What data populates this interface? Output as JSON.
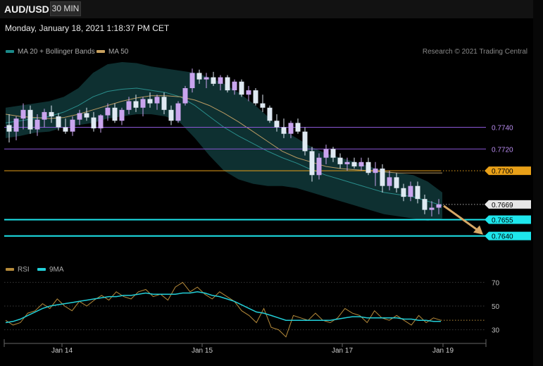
{
  "header": {
    "symbol": "AUD/USD",
    "timeframe": "30 MIN",
    "datetime": "Monday, January 18, 2021 1:18:37 PM CET"
  },
  "legend_main": [
    {
      "label": "MA 20 + Bollinger Bands",
      "color": "#1a8a8a"
    },
    {
      "label": "MA 50",
      "color": "#c9a15e"
    }
  ],
  "credit": "Research © 2021 Trading Central",
  "legend_rsi": [
    {
      "label": "RSI",
      "color": "#b58a3a"
    },
    {
      "label": "9MA",
      "color": "#22cfd8"
    }
  ],
  "colors": {
    "bull": "#c9a4ee",
    "bear": "#dfe9f2",
    "band_fill": "#0f3536",
    "ma20": "#2a8e8c",
    "ma50": "#b89a62",
    "cyan": "#1ee6ec",
    "orange": "#e8a018",
    "purple": "#8a56d6",
    "arrow": "#d7a866",
    "rsi": "#b58a3a",
    "rsi_ma": "#22cfd8"
  },
  "chart_data": [
    {
      "type": "candlestick",
      "title": "AUD/USD",
      "timeframe": "30 MIN",
      "x_labels": [
        "Jan 14",
        "Jan 15",
        "Jan 17",
        "Jan 19"
      ],
      "ylim": [
        0.763,
        0.78
      ],
      "candles": [
        {
          "o": 0.7742,
          "h": 0.7752,
          "l": 0.7726,
          "c": 0.7736
        },
        {
          "o": 0.7736,
          "h": 0.775,
          "l": 0.7728,
          "c": 0.7748
        },
        {
          "o": 0.7748,
          "h": 0.7762,
          "l": 0.7738,
          "c": 0.7756
        },
        {
          "o": 0.7756,
          "h": 0.776,
          "l": 0.7734,
          "c": 0.7738
        },
        {
          "o": 0.7738,
          "h": 0.7752,
          "l": 0.7732,
          "c": 0.7747
        },
        {
          "o": 0.7747,
          "h": 0.7757,
          "l": 0.774,
          "c": 0.7754
        },
        {
          "o": 0.7754,
          "h": 0.776,
          "l": 0.7744,
          "c": 0.775
        },
        {
          "o": 0.775,
          "h": 0.7753,
          "l": 0.7737,
          "c": 0.774
        },
        {
          "o": 0.774,
          "h": 0.7748,
          "l": 0.7734,
          "c": 0.7736
        },
        {
          "o": 0.7736,
          "h": 0.775,
          "l": 0.7732,
          "c": 0.7747
        },
        {
          "o": 0.7747,
          "h": 0.7756,
          "l": 0.7742,
          "c": 0.7753
        },
        {
          "o": 0.7753,
          "h": 0.7758,
          "l": 0.7746,
          "c": 0.7749
        },
        {
          "o": 0.7749,
          "h": 0.7754,
          "l": 0.7736,
          "c": 0.7739
        },
        {
          "o": 0.7739,
          "h": 0.7752,
          "l": 0.7735,
          "c": 0.7751
        },
        {
          "o": 0.7751,
          "h": 0.7762,
          "l": 0.7746,
          "c": 0.7758
        },
        {
          "o": 0.7758,
          "h": 0.7762,
          "l": 0.7744,
          "c": 0.7746
        },
        {
          "o": 0.7746,
          "h": 0.7758,
          "l": 0.7742,
          "c": 0.7756
        },
        {
          "o": 0.7756,
          "h": 0.7768,
          "l": 0.7752,
          "c": 0.7764
        },
        {
          "o": 0.7764,
          "h": 0.777,
          "l": 0.7754,
          "c": 0.7758
        },
        {
          "o": 0.7758,
          "h": 0.7768,
          "l": 0.775,
          "c": 0.7766
        },
        {
          "o": 0.7766,
          "h": 0.7772,
          "l": 0.7758,
          "c": 0.7762
        },
        {
          "o": 0.7762,
          "h": 0.777,
          "l": 0.7756,
          "c": 0.7768
        },
        {
          "o": 0.7768,
          "h": 0.7772,
          "l": 0.7752,
          "c": 0.7756
        },
        {
          "o": 0.7756,
          "h": 0.776,
          "l": 0.7742,
          "c": 0.7746
        },
        {
          "o": 0.7746,
          "h": 0.7764,
          "l": 0.7744,
          "c": 0.7762
        },
        {
          "o": 0.7762,
          "h": 0.7778,
          "l": 0.776,
          "c": 0.7776
        },
        {
          "o": 0.7776,
          "h": 0.7794,
          "l": 0.7772,
          "c": 0.779
        },
        {
          "o": 0.779,
          "h": 0.7793,
          "l": 0.778,
          "c": 0.7784
        },
        {
          "o": 0.7784,
          "h": 0.779,
          "l": 0.7776,
          "c": 0.7786
        },
        {
          "o": 0.7786,
          "h": 0.7791,
          "l": 0.7778,
          "c": 0.778
        },
        {
          "o": 0.778,
          "h": 0.7788,
          "l": 0.7774,
          "c": 0.7786
        },
        {
          "o": 0.7786,
          "h": 0.7788,
          "l": 0.7772,
          "c": 0.7774
        },
        {
          "o": 0.7774,
          "h": 0.7784,
          "l": 0.777,
          "c": 0.7782
        },
        {
          "o": 0.7782,
          "h": 0.7784,
          "l": 0.7768,
          "c": 0.777
        },
        {
          "o": 0.777,
          "h": 0.7778,
          "l": 0.7764,
          "c": 0.7774
        },
        {
          "o": 0.7774,
          "h": 0.7776,
          "l": 0.776,
          "c": 0.7762
        },
        {
          "o": 0.7762,
          "h": 0.777,
          "l": 0.7754,
          "c": 0.7758
        },
        {
          "o": 0.7758,
          "h": 0.776,
          "l": 0.7744,
          "c": 0.7746
        },
        {
          "o": 0.7746,
          "h": 0.7752,
          "l": 0.7736,
          "c": 0.774
        },
        {
          "o": 0.774,
          "h": 0.7748,
          "l": 0.773,
          "c": 0.7734
        },
        {
          "o": 0.7734,
          "h": 0.7746,
          "l": 0.773,
          "c": 0.7744
        },
        {
          "o": 0.7744,
          "h": 0.7748,
          "l": 0.7734,
          "c": 0.7736
        },
        {
          "o": 0.7736,
          "h": 0.774,
          "l": 0.7714,
          "c": 0.7718
        },
        {
          "o": 0.7718,
          "h": 0.7722,
          "l": 0.769,
          "c": 0.7696
        },
        {
          "o": 0.7696,
          "h": 0.7716,
          "l": 0.7692,
          "c": 0.7712
        },
        {
          "o": 0.7712,
          "h": 0.7724,
          "l": 0.7706,
          "c": 0.772
        },
        {
          "o": 0.772,
          "h": 0.7722,
          "l": 0.7708,
          "c": 0.7712
        },
        {
          "o": 0.7712,
          "h": 0.7716,
          "l": 0.7702,
          "c": 0.7706
        },
        {
          "o": 0.7706,
          "h": 0.7712,
          "l": 0.77,
          "c": 0.7708
        },
        {
          "o": 0.7708,
          "h": 0.7712,
          "l": 0.7702,
          "c": 0.7704
        },
        {
          "o": 0.7704,
          "h": 0.7712,
          "l": 0.77,
          "c": 0.7708
        },
        {
          "o": 0.7708,
          "h": 0.7712,
          "l": 0.7696,
          "c": 0.7698
        },
        {
          "o": 0.7698,
          "h": 0.7708,
          "l": 0.7686,
          "c": 0.7702
        },
        {
          "o": 0.7702,
          "h": 0.7706,
          "l": 0.768,
          "c": 0.7686
        },
        {
          "o": 0.7686,
          "h": 0.77,
          "l": 0.7682,
          "c": 0.7694
        },
        {
          "o": 0.7694,
          "h": 0.7698,
          "l": 0.768,
          "c": 0.7684
        },
        {
          "o": 0.7684,
          "h": 0.7688,
          "l": 0.7672,
          "c": 0.7676
        },
        {
          "o": 0.7676,
          "h": 0.769,
          "l": 0.7672,
          "c": 0.7686
        },
        {
          "o": 0.7686,
          "h": 0.769,
          "l": 0.767,
          "c": 0.7674
        },
        {
          "o": 0.7674,
          "h": 0.7678,
          "l": 0.766,
          "c": 0.7664
        },
        {
          "o": 0.7664,
          "h": 0.7672,
          "l": 0.7658,
          "c": 0.7666
        },
        {
          "o": 0.7666,
          "h": 0.7674,
          "l": 0.766,
          "c": 0.7669
        }
      ],
      "bollinger_upper": [
        0.7758,
        0.776,
        0.7762,
        0.7764,
        0.7768,
        0.7776,
        0.779,
        0.7798,
        0.78,
        0.7799,
        0.7796,
        0.7794,
        0.7792,
        0.779,
        0.7786,
        0.778,
        0.7772,
        0.7762,
        0.775,
        0.7738,
        0.773,
        0.7722,
        0.7716,
        0.7712,
        0.7708,
        0.7704,
        0.77,
        0.7698,
        0.7696,
        0.769,
        0.768
      ],
      "bollinger_lower": [
        0.773,
        0.7732,
        0.7735,
        0.7736,
        0.774,
        0.7742,
        0.7744,
        0.7748,
        0.775,
        0.7752,
        0.7752,
        0.775,
        0.7744,
        0.773,
        0.7714,
        0.77,
        0.7692,
        0.7688,
        0.7686,
        0.7686,
        0.7684,
        0.768,
        0.7676,
        0.7672,
        0.7668,
        0.7664,
        0.766,
        0.7658,
        0.7656,
        0.7654,
        0.7656
      ],
      "ma20": [
        0.7744,
        0.7746,
        0.7748,
        0.775,
        0.7754,
        0.776,
        0.7768,
        0.7773,
        0.7775,
        0.7776,
        0.7774,
        0.7772,
        0.7768,
        0.776,
        0.775,
        0.774,
        0.7732,
        0.7725,
        0.7718,
        0.7712,
        0.7707,
        0.7701,
        0.7696,
        0.7692,
        0.7688,
        0.7684,
        0.768,
        0.7678,
        0.7676,
        0.7672,
        0.7668
      ],
      "ma50": [
        0.7752,
        0.775,
        0.7749,
        0.7748,
        0.7749,
        0.7752,
        0.7756,
        0.776,
        0.7764,
        0.7767,
        0.7769,
        0.7769,
        0.7768,
        0.7765,
        0.776,
        0.7753,
        0.7745,
        0.7736,
        0.7727,
        0.7718,
        0.7712,
        0.7708,
        0.7704,
        0.7702,
        0.7701,
        0.77,
        0.7699,
        0.7698,
        0.7698,
        0.7698,
        0.7698
      ],
      "levels": [
        {
          "value": 0.774,
          "label": "0.7740",
          "kind": "resistance-purple"
        },
        {
          "value": 0.772,
          "label": "0.7720",
          "kind": "resistance-purple"
        },
        {
          "value": 0.77,
          "label": "0.7700",
          "kind": "pivot-orange"
        },
        {
          "value": 0.7669,
          "label": "0.7669",
          "kind": "last-price"
        },
        {
          "value": 0.7655,
          "label": "0.7655",
          "kind": "target-cyan"
        },
        {
          "value": 0.764,
          "label": "0.7640",
          "kind": "target-cyan"
        }
      ],
      "forecast_arrow": {
        "from": 0.7669,
        "to": 0.764,
        "direction": "down"
      }
    },
    {
      "type": "line",
      "title": "RSI",
      "series": [
        {
          "name": "RSI",
          "values": [
            38,
            34,
            36,
            44,
            46,
            52,
            48,
            56,
            50,
            46,
            54,
            50,
            55,
            59,
            55,
            62,
            58,
            56,
            62,
            64,
            58,
            60,
            55,
            66,
            70,
            62,
            66,
            60,
            56,
            62,
            58,
            54,
            46,
            42,
            36,
            48,
            32,
            30,
            24,
            42,
            40,
            38,
            44,
            38,
            36,
            40,
            48,
            44,
            42,
            36,
            46,
            40,
            38,
            42,
            38,
            34,
            42,
            36,
            40,
            38
          ]
        },
        {
          "name": "9MA",
          "values": [
            36,
            37,
            39,
            42,
            45,
            48,
            50,
            51,
            52,
            53,
            54,
            55,
            56,
            57,
            58,
            58,
            59,
            59,
            60,
            61,
            60,
            60,
            60,
            60,
            61,
            61,
            62,
            61,
            59,
            58,
            56,
            54,
            51,
            48,
            45,
            44,
            42,
            40,
            38,
            38,
            38,
            38,
            38,
            38,
            38,
            39,
            40,
            41,
            41,
            40,
            40,
            40,
            40,
            40,
            39,
            39,
            38,
            38,
            37,
            37
          ]
        }
      ],
      "ylim": [
        25,
        75
      ],
      "gridlines": [
        70,
        50,
        30
      ],
      "y_tick_labels": [
        "70",
        "50",
        "30"
      ]
    }
  ]
}
